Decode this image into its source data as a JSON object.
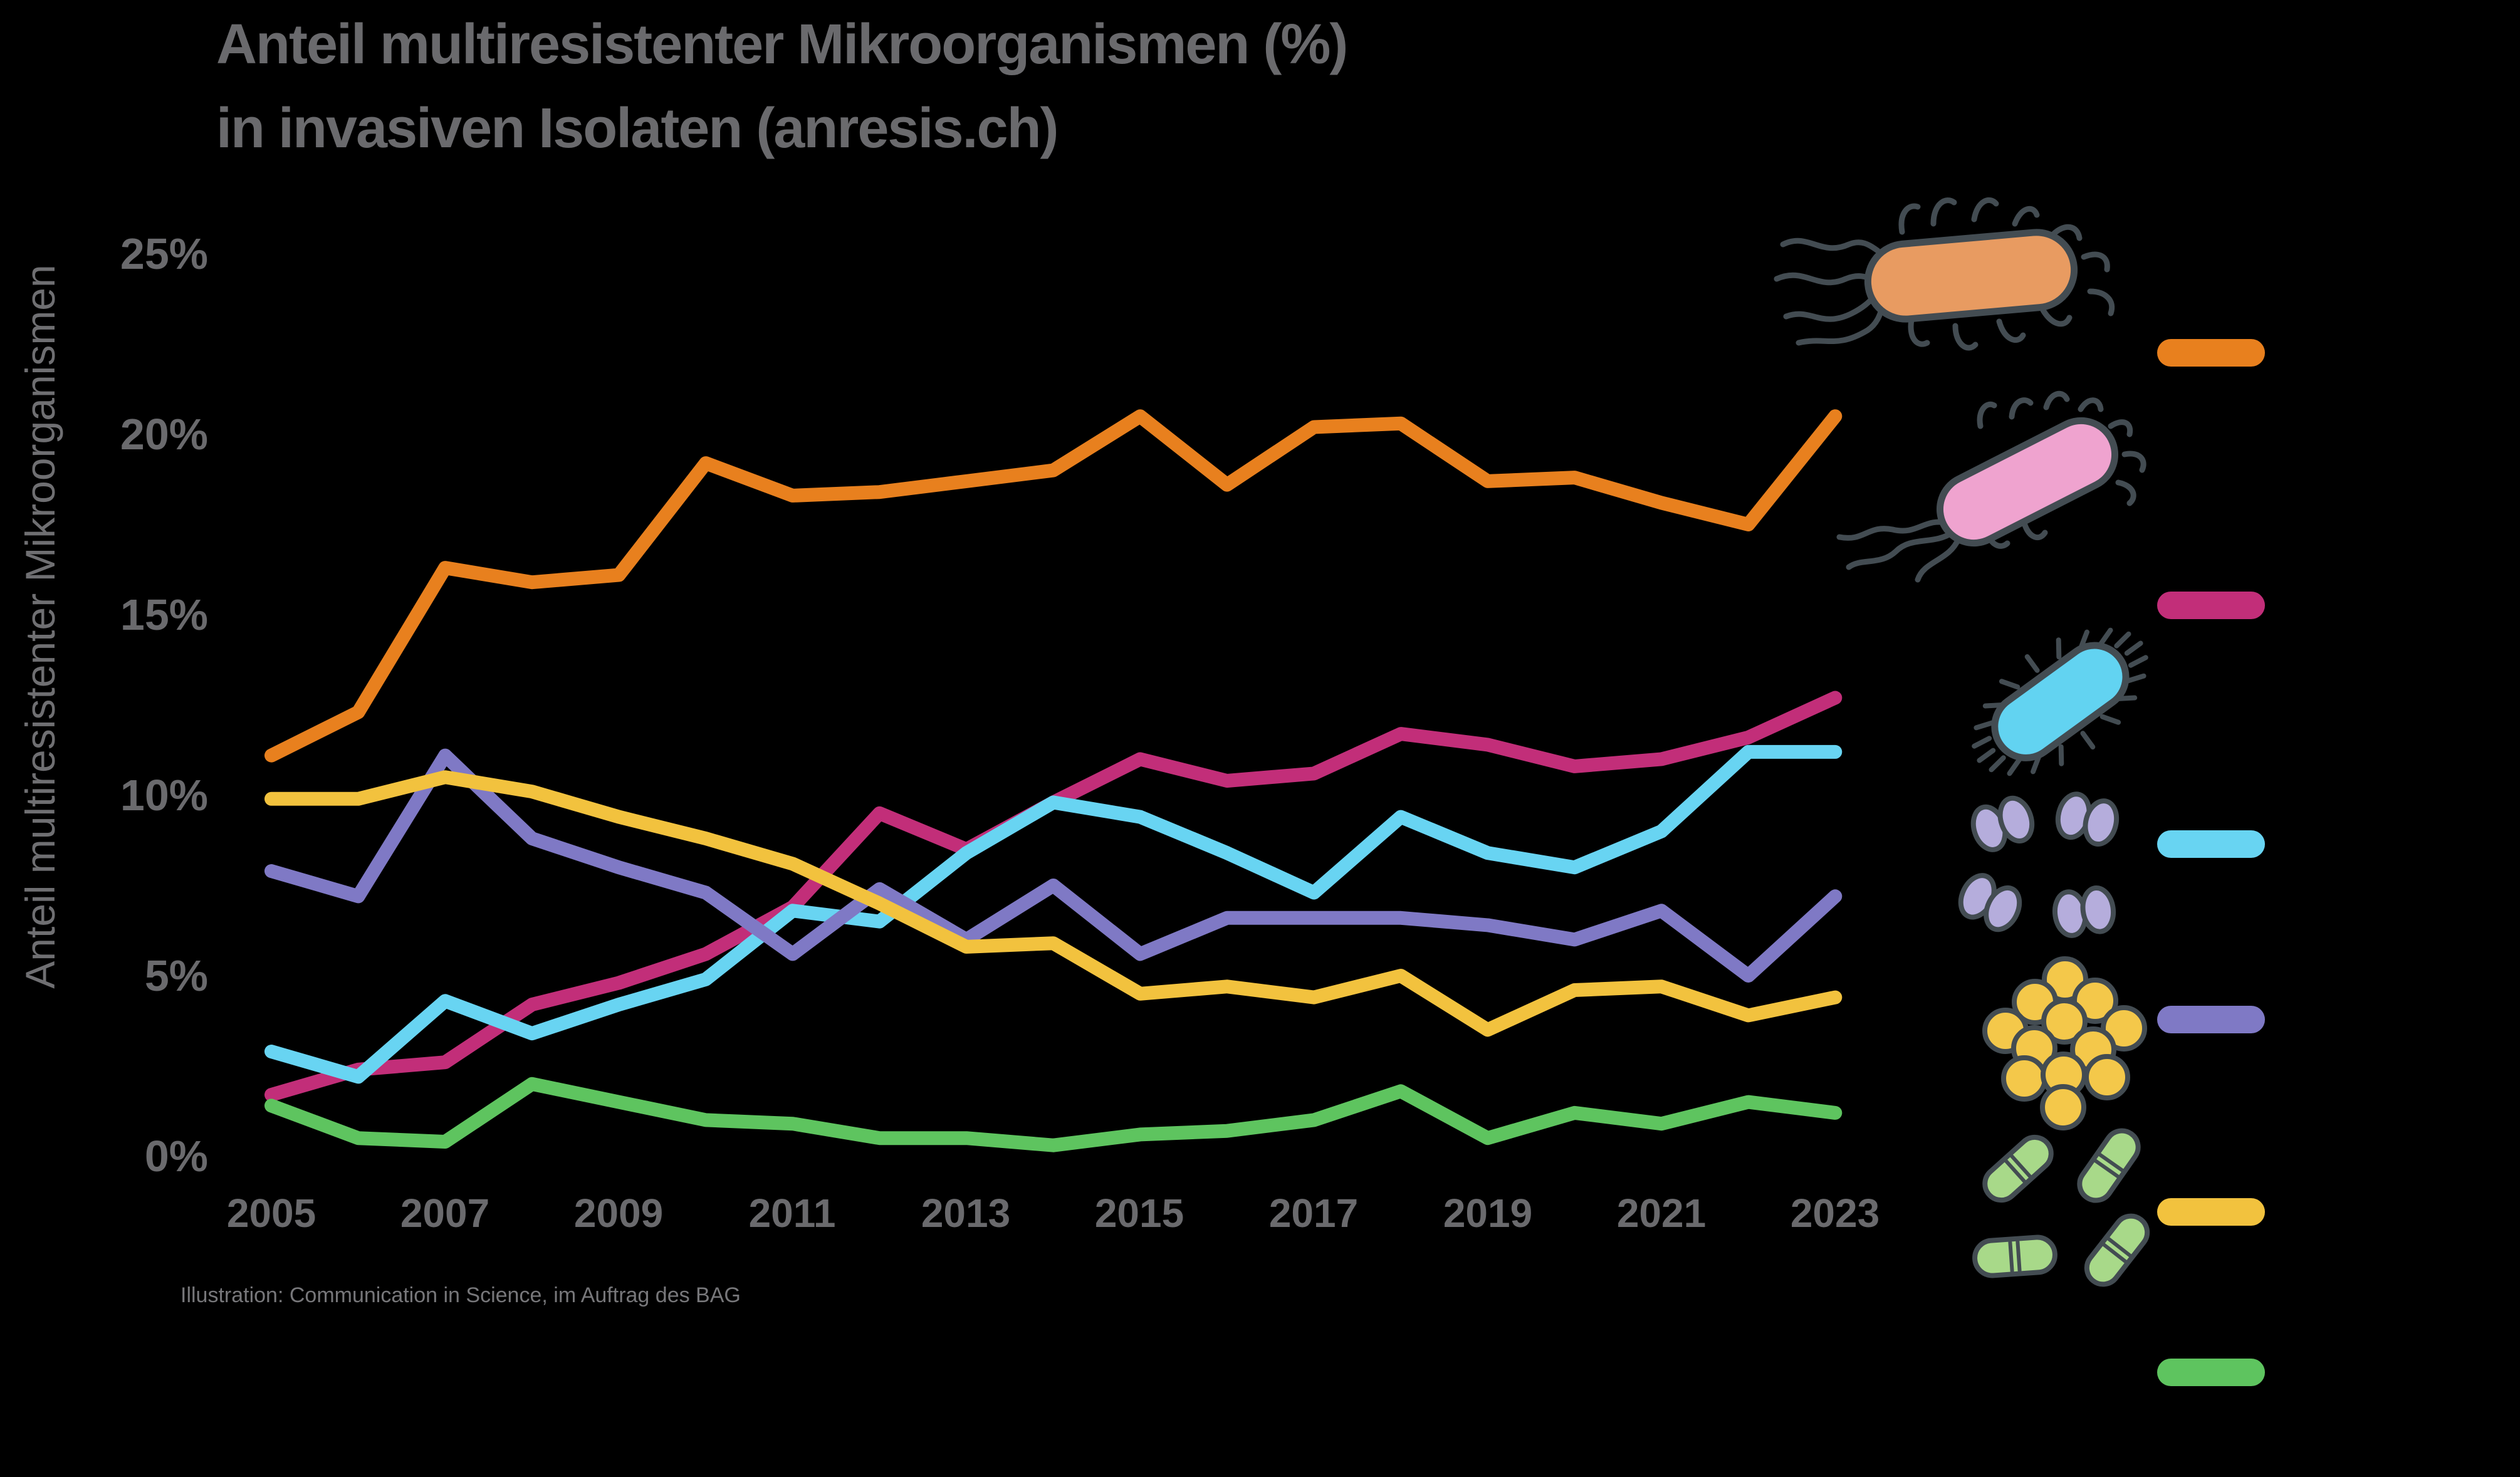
{
  "title": {
    "line1": "Anteil multiresistenter Mikroorganismen (%)",
    "line2": "in invasiven Isolaten (anresis.ch)"
  },
  "y_axis": {
    "label": "Anteil multiresistenter Mikroorganismen",
    "ticks": [
      "25%",
      "20%",
      "15%",
      "10%",
      "5%",
      "0%"
    ]
  },
  "x_axis": {
    "ticks": [
      "2005",
      "2007",
      "2009",
      "2011",
      "2013",
      "2015",
      "2017",
      "2019",
      "2021",
      "2023"
    ]
  },
  "footer": "Illustration: Communication in Science, im Auftrag des BAG",
  "colors": {
    "background": "#000000",
    "text_gray": "#6A6A6D",
    "outline_gray": "#434C52"
  },
  "legend": {
    "items": [
      {
        "name": "orange-rod-bacterium-with-flagella",
        "icon": "rod-bacterium-flagella-icon",
        "line_color": "#E8801E",
        "body_color": "#E89B61"
      },
      {
        "name": "pink-rod-bacterium-with-flagella",
        "icon": "rod-bacterium-tilted-icon",
        "line_color": "#C22E79",
        "body_color": "#EFA3CF"
      },
      {
        "name": "cyan-rod-bacterium-with-pili",
        "icon": "rod-bacterium-pili-icon",
        "line_color": "#68D4F2",
        "body_color": "#62D3F1"
      },
      {
        "name": "purple-diplococci-cluster",
        "icon": "diplococci-cluster-icon",
        "line_color": "#7F79C5",
        "body_color": "#B5ADDC"
      },
      {
        "name": "yellow-cocci-grape-cluster",
        "icon": "staphylococci-cluster-icon",
        "line_color": "#F2C23E",
        "body_color": "#F4C84A"
      },
      {
        "name": "green-diplococci-pairs",
        "icon": "enterococci-pairs-icon",
        "line_color": "#5EC45F",
        "body_color": "#A8D989"
      }
    ]
  },
  "chart_data": {
    "type": "line",
    "title": "Anteil multiresistenter Mikroorganismen (%) in invasiven Isolaten (anresis.ch)",
    "ylabel": "Anteil multiresistenter Mikroorganismen",
    "xlabel": "",
    "ylim": [
      0,
      25
    ],
    "grid": false,
    "legend_position": "right",
    "x": [
      2005,
      2006,
      2007,
      2008,
      2009,
      2010,
      2011,
      2012,
      2013,
      2014,
      2015,
      2016,
      2017,
      2018,
      2019,
      2020,
      2021,
      2022,
      2023
    ],
    "series": [
      {
        "name": "orange-rod-bacterium-with-flagella",
        "color": "#E8801E",
        "values": [
          11.1,
          12.3,
          16.3,
          15.9,
          16.1,
          19.2,
          18.3,
          18.4,
          18.7,
          19.0,
          20.5,
          18.6,
          20.2,
          20.3,
          18.7,
          18.8,
          18.1,
          17.5,
          20.5
        ]
      },
      {
        "name": "pink-rod-bacterium-with-flagella",
        "color": "#C22E79",
        "values": [
          1.7,
          2.4,
          2.6,
          4.2,
          4.8,
          5.6,
          6.9,
          9.5,
          8.5,
          9.8,
          11.0,
          10.4,
          10.6,
          11.7,
          11.4,
          10.8,
          11.0,
          11.6,
          12.7
        ]
      },
      {
        "name": "cyan-rod-bacterium-with-pili",
        "color": "#68D4F2",
        "values": [
          2.9,
          2.2,
          4.3,
          3.4,
          4.2,
          4.9,
          6.8,
          6.5,
          8.4,
          9.8,
          9.4,
          8.4,
          7.3,
          9.4,
          8.4,
          8.0,
          9.0,
          11.2,
          11.2
        ]
      },
      {
        "name": "purple-diplococci-cluster",
        "color": "#7F79C5",
        "values": [
          7.9,
          7.2,
          11.1,
          8.8,
          8.0,
          7.3,
          5.6,
          7.4,
          6.0,
          7.5,
          5.6,
          6.6,
          6.6,
          6.6,
          6.4,
          6.0,
          6.8,
          5.0,
          7.2
        ]
      },
      {
        "name": "yellow-cocci-grape-cluster",
        "color": "#F2C23E",
        "values": [
          9.9,
          9.9,
          10.5,
          10.1,
          9.4,
          8.8,
          8.1,
          7.0,
          5.8,
          5.9,
          4.5,
          4.7,
          4.4,
          5.0,
          3.5,
          4.6,
          4.7,
          3.9,
          4.4
        ]
      },
      {
        "name": "green-diplococci-pairs",
        "color": "#5EC45F",
        "values": [
          1.4,
          0.5,
          0.4,
          2.0,
          1.5,
          1.0,
          0.9,
          0.5,
          0.5,
          0.3,
          0.6,
          0.7,
          1.0,
          1.8,
          0.5,
          1.2,
          0.9,
          1.5,
          1.2
        ]
      }
    ]
  }
}
